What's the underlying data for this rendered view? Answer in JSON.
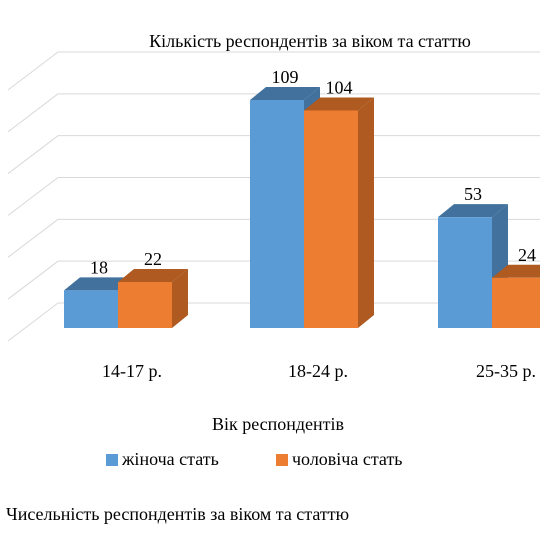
{
  "chart_data": {
    "type": "bar",
    "title": "Кількість респондентів за віком та статтю",
    "xlabel": "Вік респондентів",
    "ylabel": "",
    "categories": [
      "14-17 р.",
      "18-24 р.",
      "25-35 р."
    ],
    "series": [
      {
        "name": "жіноча стать",
        "values": [
          18,
          109,
          53
        ],
        "color": "#5B9BD5",
        "side_color": "#41719C"
      },
      {
        "name": "чоловіча стать",
        "values": [
          22,
          104,
          24
        ],
        "color": "#ED7D31",
        "side_color": "#AE5A21"
      }
    ],
    "ylim": [
      0,
      120
    ],
    "grid": true,
    "legend_position": "bottom",
    "style": "3d-clustered-column"
  },
  "caption": "Чисельність респондентів за віком та статтю"
}
